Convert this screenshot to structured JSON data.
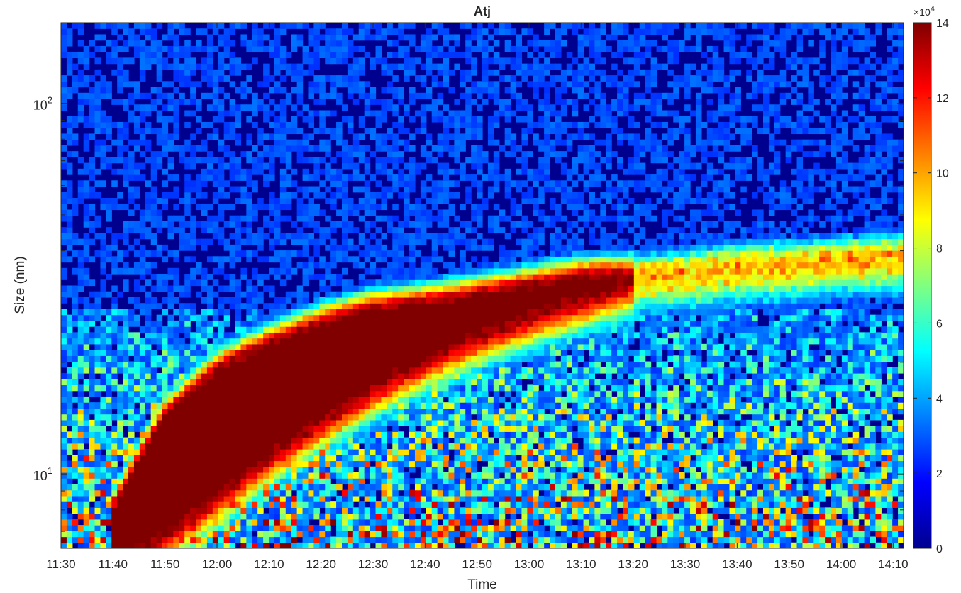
{
  "chart_data": {
    "type": "heatmap",
    "title": "Atj",
    "xlabel": "Time",
    "ylabel": "Size (nm)",
    "y_scale": "log",
    "ylim_nm": [
      6.3,
      165
    ],
    "x_ticks": [
      "11:30",
      "11:40",
      "11:50",
      "12:00",
      "12:10",
      "12:20",
      "12:30",
      "12:40",
      "12:50",
      "13:00",
      "13:10",
      "13:20",
      "13:30",
      "13:40",
      "13:50",
      "14:00",
      "14:10"
    ],
    "xlim": [
      "11:30",
      "14:12"
    ],
    "y_ticks": [
      {
        "base": "10",
        "exp": "1",
        "value": 10
      },
      {
        "base": "10",
        "exp": "2",
        "value": 100
      }
    ],
    "colorbar": {
      "colormap": "jet",
      "range": [
        0,
        140000
      ],
      "multiplier_base": "×10",
      "multiplier_exp": "4",
      "ticks": [
        "0",
        "2",
        "4",
        "6",
        "8",
        "10",
        "12",
        "14"
      ],
      "tick_values": [
        0,
        2,
        4,
        6,
        8,
        10,
        12,
        14
      ]
    },
    "banana_ridge": [
      {
        "time": "11:40",
        "center_nm": 7.0,
        "saturated_width_dec": 0.1
      },
      {
        "time": "11:45",
        "center_nm": 8.3,
        "saturated_width_dec": 0.22
      },
      {
        "time": "11:50",
        "center_nm": 10.0,
        "saturated_width_dec": 0.3
      },
      {
        "time": "12:00",
        "center_nm": 13.0,
        "saturated_width_dec": 0.32
      },
      {
        "time": "12:10",
        "center_nm": 16.0,
        "saturated_width_dec": 0.28
      },
      {
        "time": "12:20",
        "center_nm": 19.0,
        "saturated_width_dec": 0.24
      },
      {
        "time": "12:30",
        "center_nm": 22.0,
        "saturated_width_dec": 0.19
      },
      {
        "time": "12:40",
        "center_nm": 24.5,
        "saturated_width_dec": 0.13
      },
      {
        "time": "12:50",
        "center_nm": 27.0,
        "saturated_width_dec": 0.09
      },
      {
        "time": "13:00",
        "center_nm": 29.5,
        "saturated_width_dec": 0.06
      },
      {
        "time": "13:10",
        "center_nm": 32.0,
        "saturated_width_dec": 0.04
      },
      {
        "time": "13:20",
        "center_nm": 34.0,
        "saturated_width_dec": 0.0
      },
      {
        "time": "13:40",
        "center_nm": 36.5,
        "saturated_width_dec": 0.0
      },
      {
        "time": "14:00",
        "center_nm": 38.0,
        "saturated_width_dec": 0.0
      },
      {
        "time": "14:12",
        "center_nm": 39.0,
        "saturated_width_dec": 0.0
      }
    ],
    "grid": false,
    "legend": "colorbar-right"
  }
}
